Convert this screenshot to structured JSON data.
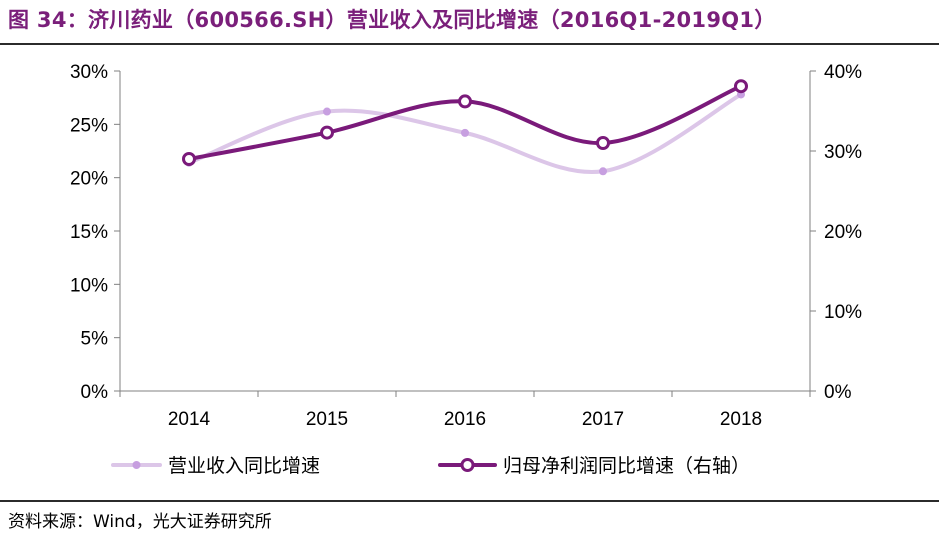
{
  "figure": {
    "title": "图 34：济川药业（600566.SH）营业收入及同比增速（2016Q1-2019Q1）",
    "source": "资料来源：Wind，光大证券研究所"
  },
  "colors": {
    "title": "#7a1f7a",
    "revenue_series": "#dcc6e8",
    "revenue_marker": "#c79fe0",
    "profit_series": "#7a1a7a",
    "axis": "#808080"
  },
  "chart_data": {
    "type": "line",
    "categories": [
      "2014",
      "2015",
      "2016",
      "2017",
      "2018"
    ],
    "series": [
      {
        "name": "营业收入同比增速",
        "axis": "left",
        "values": [
          0.214,
          0.262,
          0.242,
          0.206,
          0.278
        ]
      },
      {
        "name": "归母净利润同比增速（右轴）",
        "axis": "right",
        "values": [
          0.29,
          0.323,
          0.362,
          0.31,
          0.381
        ]
      }
    ],
    "y_left": {
      "min": 0,
      "max": 0.3,
      "ticks": [
        0,
        0.05,
        0.1,
        0.15,
        0.2,
        0.25,
        0.3
      ],
      "tick_labels": [
        "0%",
        "5%",
        "10%",
        "15%",
        "20%",
        "25%",
        "30%"
      ]
    },
    "y_right": {
      "min": 0,
      "max": 0.4,
      "ticks": [
        0,
        0.1,
        0.2,
        0.3,
        0.4
      ],
      "tick_labels": [
        "0%",
        "10%",
        "20%",
        "30%",
        "40%"
      ]
    },
    "smooth": true,
    "grid": false,
    "legend_position": "bottom"
  }
}
